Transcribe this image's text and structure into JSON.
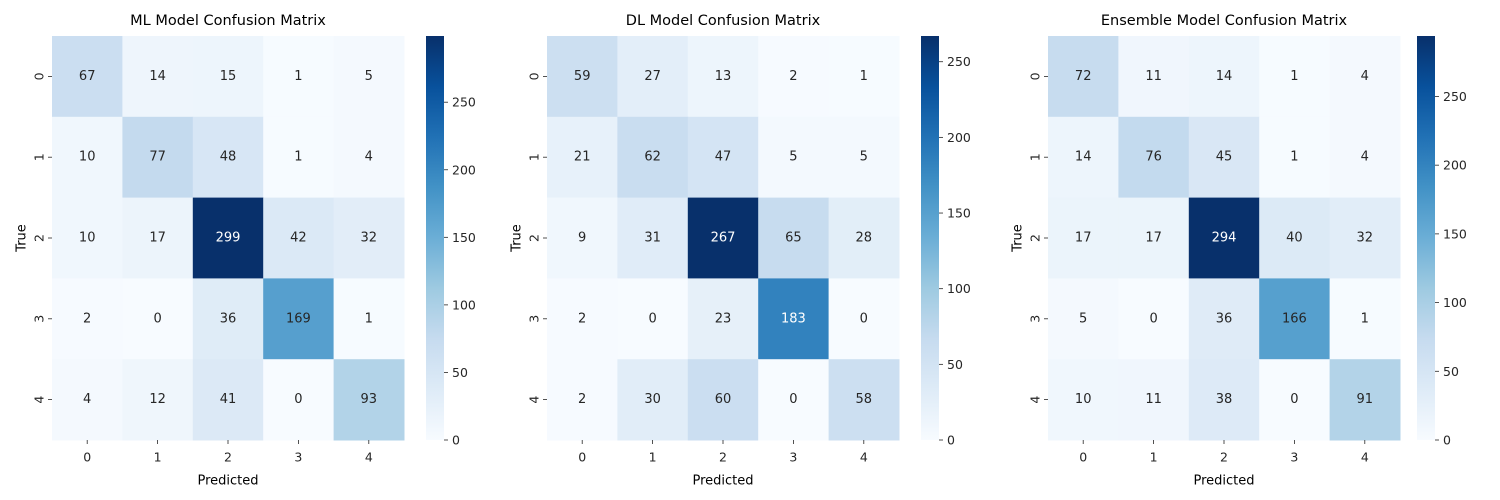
{
  "chart_data": [
    {
      "type": "heatmap",
      "title": "ML Model Confusion Matrix",
      "xlabel": "Predicted",
      "ylabel": "True",
      "x_ticks": [
        "0",
        "1",
        "2",
        "3",
        "4"
      ],
      "y_ticks": [
        "0",
        "1",
        "2",
        "3",
        "4"
      ],
      "matrix": [
        [
          67,
          14,
          15,
          1,
          5
        ],
        [
          10,
          77,
          48,
          1,
          4
        ],
        [
          10,
          17,
          299,
          42,
          32
        ],
        [
          2,
          0,
          36,
          169,
          1
        ],
        [
          4,
          12,
          41,
          0,
          93
        ]
      ],
      "colorbar_ticks": [
        "0",
        "50",
        "100",
        "150",
        "200",
        "250"
      ],
      "colorbar_range": [
        0,
        299
      ],
      "colormap": [
        "#f7fbff",
        "#deebf7",
        "#c6dbef",
        "#9ecae1",
        "#6baed6",
        "#4292c6",
        "#2171b5",
        "#08519c",
        "#08306b"
      ]
    },
    {
      "type": "heatmap",
      "title": "DL Model Confusion Matrix",
      "xlabel": "Predicted",
      "ylabel": "True",
      "x_ticks": [
        "0",
        "1",
        "2",
        "3",
        "4"
      ],
      "y_ticks": [
        "0",
        "1",
        "2",
        "3",
        "4"
      ],
      "matrix": [
        [
          59,
          27,
          13,
          2,
          1
        ],
        [
          21,
          62,
          47,
          5,
          5
        ],
        [
          9,
          31,
          267,
          65,
          28
        ],
        [
          2,
          0,
          23,
          183,
          0
        ],
        [
          2,
          30,
          60,
          0,
          58
        ]
      ],
      "colorbar_ticks": [
        "0",
        "50",
        "100",
        "150",
        "200",
        "250"
      ],
      "colorbar_range": [
        0,
        267
      ],
      "colormap": [
        "#f7fbff",
        "#deebf7",
        "#c6dbef",
        "#9ecae1",
        "#6baed6",
        "#4292c6",
        "#2171b5",
        "#08519c",
        "#08306b"
      ]
    },
    {
      "type": "heatmap",
      "title": "Ensemble Model Confusion Matrix",
      "xlabel": "Predicted",
      "ylabel": "True",
      "x_ticks": [
        "0",
        "1",
        "2",
        "3",
        "4"
      ],
      "y_ticks": [
        "0",
        "1",
        "2",
        "3",
        "4"
      ],
      "matrix": [
        [
          72,
          11,
          14,
          1,
          4
        ],
        [
          14,
          76,
          45,
          1,
          4
        ],
        [
          17,
          17,
          294,
          40,
          32
        ],
        [
          5,
          0,
          36,
          166,
          1
        ],
        [
          10,
          11,
          38,
          0,
          91
        ]
      ],
      "colorbar_ticks": [
        "0",
        "50",
        "100",
        "150",
        "200",
        "250"
      ],
      "colorbar_range": [
        0,
        294
      ],
      "colormap": [
        "#f7fbff",
        "#deebf7",
        "#c6dbef",
        "#9ecae1",
        "#6baed6",
        "#4292c6",
        "#2171b5",
        "#08519c",
        "#08306b"
      ]
    }
  ]
}
